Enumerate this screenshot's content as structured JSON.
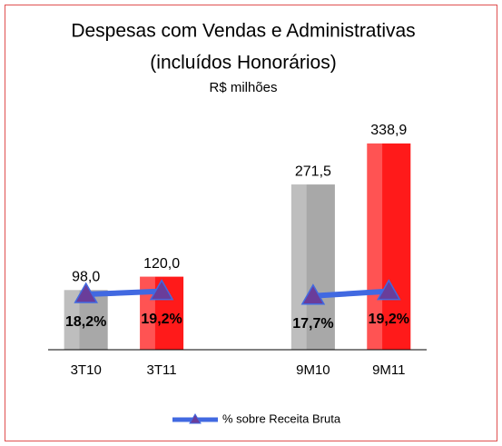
{
  "chart_data": {
    "type": "bar",
    "title": [
      "Despesas com Vendas e Administrativas",
      "(incluídos Honorários)"
    ],
    "subtitle": "R$ milhões",
    "categories": [
      "3T10",
      "3T11",
      null,
      "9M10",
      "9M11"
    ],
    "values": [
      98.0,
      120.0,
      null,
      271.5,
      338.9
    ],
    "value_labels": [
      "98,0",
      "120,0",
      null,
      "271,5",
      "338,9"
    ],
    "colors": [
      "#a8a8a8",
      "#ff1a1a",
      null,
      "#a8a8a8",
      "#ff1a1a"
    ],
    "ylim": [
      0,
      400
    ],
    "y2lim": [
      0,
      80
    ],
    "series": [
      {
        "name": "% sobre Receita Bruta",
        "color": "#4169e1",
        "marker_color": "#6a3d9a",
        "axis": "y2",
        "values": [
          18.2,
          19.2,
          null,
          17.7,
          19.2
        ],
        "value_labels": [
          "18,2%",
          "19,2%",
          null,
          "17,7%",
          "19,2%"
        ]
      }
    ],
    "legend": "bottom"
  }
}
